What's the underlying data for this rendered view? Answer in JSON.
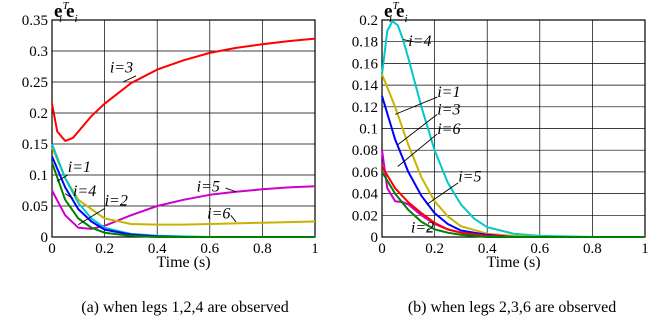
{
  "chart_data": [
    {
      "type": "line",
      "ylabel_main": "e",
      "ylabel_sup": "T",
      "ylabel_sub_1": "i",
      "ylabel_main2": "e",
      "ylabel_sub_2": "i",
      "xlabel": "Time (s)",
      "caption": "(a) when legs 1,2,4 are observed",
      "xlim": [
        0,
        1
      ],
      "ylim": [
        0,
        0.35
      ],
      "grid": true,
      "x_ticks": [
        0,
        0.2,
        0.4,
        0.6,
        0.8,
        1
      ],
      "x_tick_labels": [
        "0",
        "0.2",
        "0.4",
        "0.6",
        "0.8",
        "1"
      ],
      "y_ticks": [
        0,
        0.05,
        0.1,
        0.15,
        0.2,
        0.25,
        0.3,
        0.35
      ],
      "y_tick_labels": [
        "0",
        "0.05",
        "0.1",
        "0.15",
        "0.2",
        "0.25",
        "0.3",
        "0.35"
      ],
      "series": [
        {
          "name": "i=3",
          "color": "#ff0000",
          "x": [
            0,
            0.02,
            0.05,
            0.08,
            0.1,
            0.15,
            0.2,
            0.3,
            0.4,
            0.5,
            0.6,
            0.7,
            0.8,
            0.9,
            1.0
          ],
          "y": [
            0.215,
            0.17,
            0.155,
            0.16,
            0.17,
            0.195,
            0.215,
            0.248,
            0.27,
            0.285,
            0.297,
            0.305,
            0.311,
            0.316,
            0.32
          ]
        },
        {
          "name": "i=5",
          "color": "#cc00cc",
          "x": [
            0,
            0.05,
            0.1,
            0.15,
            0.2,
            0.3,
            0.4,
            0.5,
            0.6,
            0.7,
            0.8,
            0.9,
            1.0
          ],
          "y": [
            0.075,
            0.035,
            0.015,
            0.013,
            0.018,
            0.035,
            0.05,
            0.06,
            0.068,
            0.073,
            0.077,
            0.08,
            0.082
          ]
        },
        {
          "name": "i=6",
          "color": "#c8b400",
          "x": [
            0,
            0.05,
            0.1,
            0.2,
            0.3,
            0.4,
            0.5,
            0.6,
            0.7,
            0.8,
            0.9,
            1.0
          ],
          "y": [
            0.145,
            0.095,
            0.06,
            0.03,
            0.021,
            0.02,
            0.02,
            0.021,
            0.022,
            0.023,
            0.024,
            0.025
          ]
        },
        {
          "name": "i=1",
          "color": "#00c8c8",
          "x": [
            0,
            0.05,
            0.1,
            0.15,
            0.2,
            0.3,
            0.4,
            0.5,
            0.6,
            0.8,
            1.0
          ],
          "y": [
            0.15,
            0.095,
            0.055,
            0.03,
            0.015,
            0.005,
            0.002,
            0.001,
            0.0,
            0.0,
            0.0
          ]
        },
        {
          "name": "i=4",
          "color": "#0000ff",
          "x": [
            0,
            0.05,
            0.1,
            0.15,
            0.2,
            0.3,
            0.4,
            0.5,
            0.6,
            0.8,
            1.0
          ],
          "y": [
            0.13,
            0.08,
            0.045,
            0.025,
            0.012,
            0.004,
            0.001,
            0.0,
            0.0,
            0.0,
            0.0
          ]
        },
        {
          "name": "i=2",
          "color": "#008000",
          "x": [
            0,
            0.05,
            0.1,
            0.15,
            0.2,
            0.3,
            0.4,
            0.6,
            0.8,
            1.0
          ],
          "y": [
            0.12,
            0.06,
            0.03,
            0.015,
            0.007,
            0.002,
            0.0,
            0.0,
            0.0,
            0.0
          ]
        }
      ],
      "labels": [
        {
          "text": "i=3",
          "x": 0.22,
          "y": 0.265
        },
        {
          "text": "i=1",
          "x": 0.06,
          "y": 0.105
        },
        {
          "text": "i=4",
          "x": 0.08,
          "y": 0.066
        },
        {
          "text": "i=2",
          "x": 0.2,
          "y": 0.051
        },
        {
          "text": "i=5",
          "x": 0.55,
          "y": 0.073
        },
        {
          "text": "i=6",
          "x": 0.59,
          "y": 0.03
        }
      ],
      "leaders": [
        {
          "x1": 0.27,
          "y1": 0.25,
          "x2": 0.32,
          "y2": 0.26
        },
        {
          "x1": 0.06,
          "y1": 0.1,
          "x2": 0.02,
          "y2": 0.09
        },
        {
          "x1": 0.08,
          "y1": 0.062,
          "x2": 0.05,
          "y2": 0.07
        },
        {
          "x1": 0.2,
          "y1": 0.046,
          "x2": 0.1,
          "y2": 0.02
        },
        {
          "x1": 0.66,
          "y1": 0.079,
          "x2": 0.7,
          "y2": 0.073
        },
        {
          "x1": 0.68,
          "y1": 0.035,
          "x2": 0.7,
          "y2": 0.024
        }
      ]
    },
    {
      "type": "line",
      "ylabel_main": "e",
      "ylabel_sup": "T",
      "ylabel_sub_1": "i",
      "ylabel_main2": "e",
      "ylabel_sub_2": "i",
      "xlabel": "Time (s)",
      "caption": "(b) when legs 2,3,6 are observed",
      "xlim": [
        0,
        1
      ],
      "ylim": [
        0,
        0.2
      ],
      "grid": true,
      "x_ticks": [
        0,
        0.2,
        0.4,
        0.6,
        0.8,
        1
      ],
      "x_tick_labels": [
        "0",
        "0.2",
        "0.4",
        "0.6",
        "0.8",
        "1"
      ],
      "y_ticks": [
        0,
        0.02,
        0.04,
        0.06,
        0.08,
        0.1,
        0.12,
        0.14,
        0.16,
        0.18,
        0.2
      ],
      "y_tick_labels": [
        "0",
        "0.02",
        "0.04",
        "0.06",
        "0.08",
        "0.1",
        "0.12",
        "0.14",
        "0.16",
        "0.18",
        "0.2"
      ],
      "series": [
        {
          "name": "i=4",
          "color": "#00c8c8",
          "x": [
            0,
            0.02,
            0.04,
            0.06,
            0.08,
            0.1,
            0.15,
            0.2,
            0.25,
            0.3,
            0.35,
            0.4,
            0.5,
            0.6,
            0.8,
            1.0
          ],
          "y": [
            0.15,
            0.19,
            0.199,
            0.195,
            0.182,
            0.165,
            0.12,
            0.08,
            0.05,
            0.03,
            0.017,
            0.009,
            0.003,
            0.001,
            0.0,
            0.0
          ]
        },
        {
          "name": "i=1",
          "color": "#c8b400",
          "x": [
            0,
            0.05,
            0.1,
            0.15,
            0.2,
            0.25,
            0.3,
            0.4,
            0.5,
            0.6,
            0.8,
            1.0
          ],
          "y": [
            0.15,
            0.12,
            0.085,
            0.055,
            0.033,
            0.019,
            0.01,
            0.003,
            0.001,
            0.0,
            0.0,
            0.0
          ]
        },
        {
          "name": "i=3",
          "color": "#0000ff",
          "x": [
            0,
            0.05,
            0.1,
            0.15,
            0.2,
            0.25,
            0.3,
            0.4,
            0.5,
            0.6,
            0.8,
            1.0
          ],
          "y": [
            0.13,
            0.09,
            0.06,
            0.038,
            0.022,
            0.012,
            0.006,
            0.002,
            0.0,
            0.0,
            0.0,
            0.0
          ]
        },
        {
          "name": "i=6",
          "color": "#cc00cc",
          "x": [
            0,
            0.02,
            0.05,
            0.08,
            0.1,
            0.15,
            0.2,
            0.25,
            0.3,
            0.4,
            0.5,
            0.6,
            0.8,
            1.0
          ],
          "y": [
            0.08,
            0.045,
            0.033,
            0.032,
            0.03,
            0.02,
            0.012,
            0.007,
            0.004,
            0.001,
            0.0,
            0.0,
            0.0,
            0.0
          ]
        },
        {
          "name": "i=5",
          "color": "#ff0000",
          "x": [
            0,
            0.05,
            0.1,
            0.15,
            0.2,
            0.25,
            0.3,
            0.4,
            0.5,
            0.6,
            0.8,
            1.0
          ],
          "y": [
            0.065,
            0.045,
            0.032,
            0.022,
            0.013,
            0.007,
            0.004,
            0.001,
            0.0,
            0.0,
            0.0,
            0.0
          ]
        },
        {
          "name": "i=2",
          "color": "#008000",
          "x": [
            0,
            0.05,
            0.1,
            0.15,
            0.2,
            0.25,
            0.3,
            0.4,
            0.5,
            0.6,
            0.8,
            1.0
          ],
          "y": [
            0.06,
            0.04,
            0.025,
            0.014,
            0.007,
            0.004,
            0.002,
            0.0,
            0.0,
            0.0,
            0.0,
            0.0
          ]
        }
      ],
      "labels": [
        {
          "text": "i=4",
          "x": 0.1,
          "y": 0.176
        },
        {
          "text": "i=1",
          "x": 0.21,
          "y": 0.129
        },
        {
          "text": "i=3",
          "x": 0.21,
          "y": 0.113
        },
        {
          "text": "i=6",
          "x": 0.21,
          "y": 0.095
        },
        {
          "text": "i=5",
          "x": 0.29,
          "y": 0.051
        },
        {
          "text": "i=2",
          "x": 0.11,
          "y": 0.004
        }
      ],
      "leaders": [
        {
          "x1": 0.12,
          "y1": 0.18,
          "x2": 0.08,
          "y2": 0.182
        },
        {
          "x1": 0.21,
          "y1": 0.129,
          "x2": 0.05,
          "y2": 0.113
        },
        {
          "x1": 0.21,
          "y1": 0.113,
          "x2": 0.06,
          "y2": 0.085
        },
        {
          "x1": 0.21,
          "y1": 0.095,
          "x2": 0.06,
          "y2": 0.065
        },
        {
          "x1": 0.29,
          "y1": 0.05,
          "x2": 0.17,
          "y2": 0.03
        },
        {
          "x1": 0.17,
          "y1": 0.006,
          "x2": 0.18,
          "y2": 0.008
        }
      ]
    }
  ]
}
